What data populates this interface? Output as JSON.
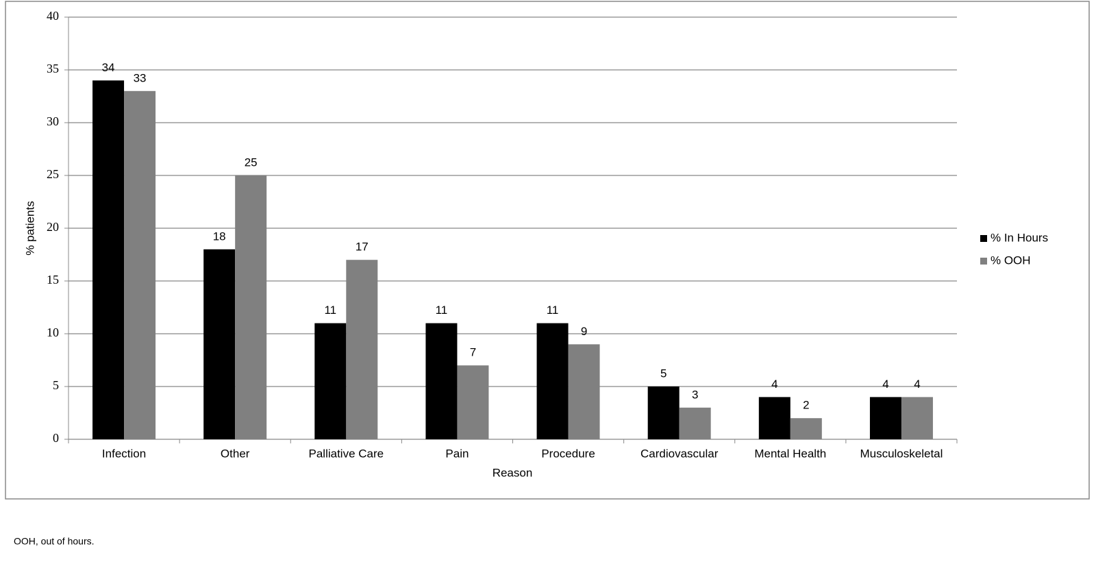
{
  "chart_data": {
    "type": "bar",
    "x_label": "Reason",
    "y_label": "% patients",
    "categories": [
      "Infection",
      "Other",
      "Palliative Care",
      "Pain",
      "Procedure",
      "Cardiovascular",
      "Mental Health",
      "Musculoskeletal"
    ],
    "series": [
      {
        "name": "% In Hours",
        "color": "#000000",
        "values": [
          34,
          18,
          11,
          11,
          11,
          5,
          4,
          4
        ]
      },
      {
        "name": "% OOH",
        "color": "#808080",
        "values": [
          33,
          25,
          17,
          7,
          9,
          3,
          2,
          4
        ]
      }
    ],
    "ylim": [
      0,
      40
    ],
    "yticks": [
      0,
      5,
      10,
      15,
      20,
      25,
      30,
      35,
      40
    ],
    "grid": true,
    "legend": "right"
  },
  "footnote": "OOH, out of hours."
}
